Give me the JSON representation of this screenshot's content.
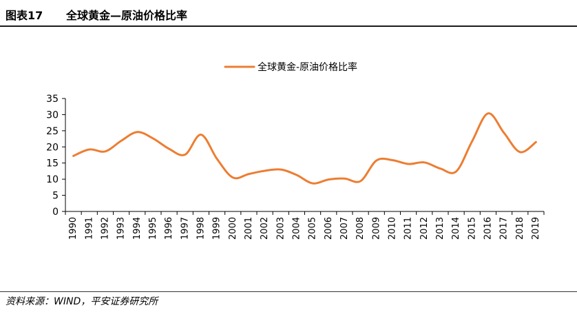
{
  "figure": {
    "number": "图表17",
    "title": "全球黄金—原油价格比率",
    "source": "资料来源：WIND，平安证券研究所"
  },
  "colors": {
    "series": "#ED7D31",
    "axis": "#000000"
  },
  "chart_data": {
    "type": "line",
    "title": "",
    "xlabel": "",
    "ylabel": "",
    "ylim": [
      0,
      35
    ],
    "yticks": [
      0,
      5,
      10,
      15,
      20,
      25,
      30,
      35
    ],
    "grid": false,
    "legend_position": "top-center",
    "categories": [
      "1990",
      "1991",
      "1992",
      "1993",
      "1994",
      "1995",
      "1996",
      "1997",
      "1998",
      "1999",
      "2000",
      "2001",
      "2002",
      "2003",
      "2004",
      "2005",
      "2006",
      "2007",
      "2008",
      "2009",
      "2010",
      "2011",
      "2012",
      "2013",
      "2014",
      "2015",
      "2016",
      "2017",
      "2018",
      "2019"
    ],
    "series": [
      {
        "name": "全球黄金-原油价格比率",
        "values": [
          17.2,
          19.2,
          18.6,
          21.9,
          24.6,
          22.6,
          19.4,
          17.6,
          23.8,
          16.3,
          10.5,
          11.6,
          12.6,
          13.0,
          11.3,
          8.7,
          9.9,
          10.2,
          9.4,
          15.8,
          15.9,
          14.7,
          15.2,
          13.3,
          12.4,
          21.8,
          30.4,
          24.3,
          18.4,
          21.5
        ]
      }
    ]
  }
}
